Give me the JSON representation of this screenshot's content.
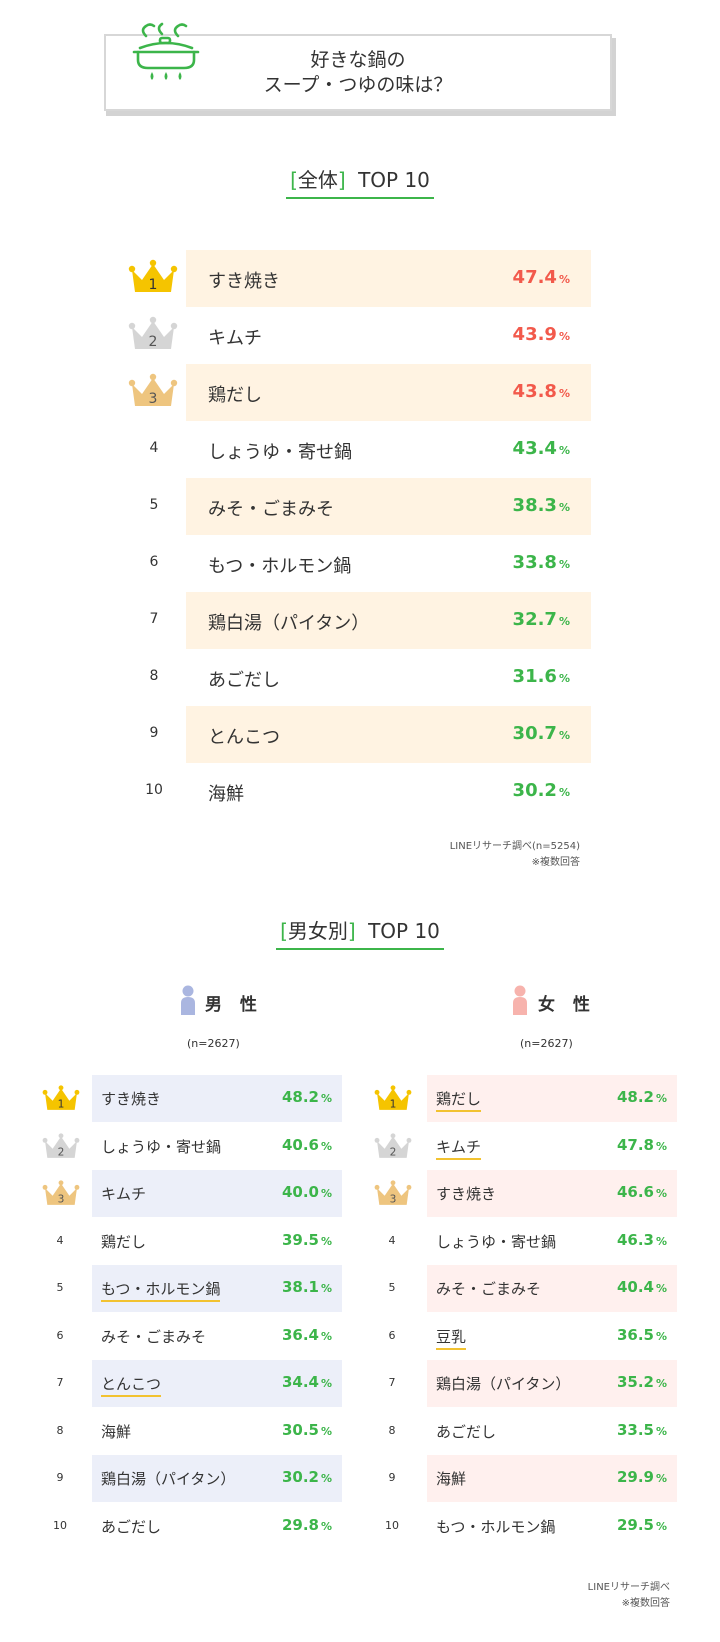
{
  "header": {
    "title_line1": "好きな鍋の",
    "title_line2": "スープ・つゆの味は？"
  },
  "overall": {
    "title_bracket_open": "[",
    "title_word": "全体",
    "title_bracket_close": "]",
    "title_suffix": "TOP 10",
    "source": "LINEリサーチ調べ(n=5254)",
    "note": "※複数回答"
  },
  "gender": {
    "title_bracket_open": "[",
    "title_word": "男女別",
    "title_bracket_close": "]",
    "title_suffix": "TOP 10",
    "male_label": "男 性",
    "female_label": "女 性",
    "male_n": "(n=2627)",
    "female_n": "(n=2627)",
    "source": "LINEリサーチ調べ",
    "note": "※複数回答"
  },
  "unit": "%",
  "rank_numbers": [
    "1",
    "2",
    "3",
    "4",
    "5",
    "6",
    "7",
    "8",
    "9",
    "10"
  ],
  "colors": {
    "accent_green": "#3cb54a",
    "top_red": "#f2594b",
    "gold": "#f5c400",
    "silver": "#d5d5d5",
    "bronze": "#eec57f",
    "overall_highlight": "#fff3e2",
    "male_highlight": "#eceff9",
    "female_highlight": "#fff0ee",
    "male_icon": "#aab6e0",
    "female_icon": "#f7b3ad",
    "underline_yellow": "#f2c230"
  },
  "chart_data": [
    {
      "type": "table",
      "categories": [
        "すき焼き",
        "キムチ",
        "鶏だし",
        "しょうゆ・寄せ鍋",
        "みそ・ごまみそ",
        "もつ・ホルモン鍋",
        "鶏白湯（パイタン）",
        "あごだし",
        "とんこつ",
        "海鮮"
      ],
      "values": [
        47.4,
        43.9,
        43.8,
        43.4,
        38.3,
        33.8,
        32.7,
        31.6,
        30.7,
        30.2
      ],
      "value_labels": [
        "47.4",
        "43.9",
        "43.8",
        "43.4",
        "38.3",
        "33.8",
        "32.7",
        "31.6",
        "30.7",
        "30.2"
      ],
      "title": "[全体] TOP 10"
    },
    {
      "type": "table",
      "title": "[男女別] TOP 10",
      "series": [
        {
          "name": "男 性",
          "categories": [
            "すき焼き",
            "しょうゆ・寄せ鍋",
            "キムチ",
            "鶏だし",
            "もつ・ホルモン鍋",
            "みそ・ごまみそ",
            "とんこつ",
            "海鮮",
            "鶏白湯（パイタン）",
            "あごだし"
          ],
          "values": [
            48.2,
            40.6,
            40.0,
            39.5,
            38.1,
            36.4,
            34.4,
            30.5,
            30.2,
            29.8
          ],
          "value_labels": [
            "48.2",
            "40.6",
            "40.0",
            "39.5",
            "38.1",
            "36.4",
            "34.4",
            "30.5",
            "30.2",
            "29.8"
          ],
          "underlined": [
            false,
            false,
            false,
            false,
            true,
            false,
            true,
            false,
            false,
            false
          ]
        },
        {
          "name": "女 性",
          "categories": [
            "鶏だし",
            "キムチ",
            "すき焼き",
            "しょうゆ・寄せ鍋",
            "みそ・ごまみそ",
            "豆乳",
            "鶏白湯（パイタン）",
            "あごだし",
            "海鮮",
            "もつ・ホルモン鍋"
          ],
          "values": [
            48.2,
            47.8,
            46.6,
            46.3,
            40.4,
            36.5,
            35.2,
            33.5,
            29.9,
            29.5
          ],
          "value_labels": [
            "48.2",
            "47.8",
            "46.6",
            "46.3",
            "40.4",
            "36.5",
            "35.2",
            "33.5",
            "29.9",
            "29.5"
          ],
          "underlined": [
            true,
            true,
            false,
            false,
            false,
            true,
            false,
            false,
            false,
            false
          ]
        }
      ]
    }
  ]
}
